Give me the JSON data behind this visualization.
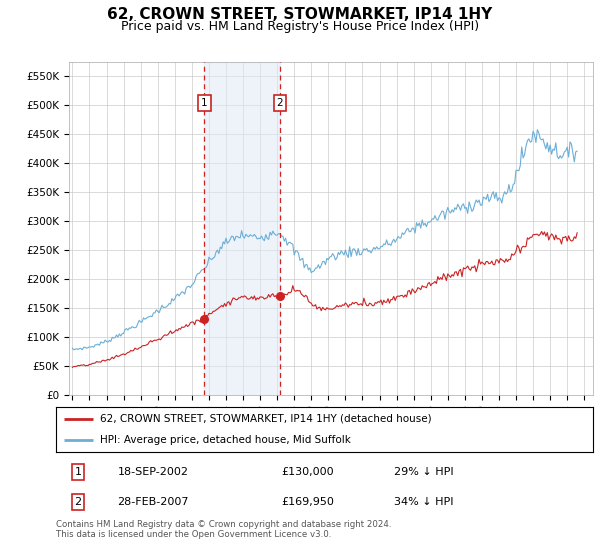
{
  "title": "62, CROWN STREET, STOWMARKET, IP14 1HY",
  "subtitle": "Price paid vs. HM Land Registry's House Price Index (HPI)",
  "title_fontsize": 11,
  "subtitle_fontsize": 9,
  "ylim": [
    0,
    575000
  ],
  "yticks": [
    0,
    50000,
    100000,
    150000,
    200000,
    250000,
    300000,
    350000,
    400000,
    450000,
    500000,
    550000
  ],
  "ytick_labels": [
    "£0",
    "£50K",
    "£100K",
    "£150K",
    "£200K",
    "£250K",
    "£300K",
    "£350K",
    "£400K",
    "£450K",
    "£500K",
    "£550K"
  ],
  "hpi_color": "#6baed6",
  "price_color": "#cc2222",
  "vline_color": "#cc2222",
  "shade_color": "#dce9f5",
  "shade_alpha": 0.5,
  "marker1_x": 2002.72,
  "marker2_x": 2007.17,
  "marker1_price": 130000,
  "marker2_price": 169950,
  "transaction1": "18-SEP-2002",
  "transaction2": "28-FEB-2007",
  "pct1": "29% ↓ HPI",
  "pct2": "34% ↓ HPI",
  "legend_line1": "62, CROWN STREET, STOWMARKET, IP14 1HY (detached house)",
  "legend_line2": "HPI: Average price, detached house, Mid Suffolk",
  "footnote": "Contains HM Land Registry data © Crown copyright and database right 2024.\nThis data is licensed under the Open Government Licence v3.0.",
  "bg_color": "#ffffff",
  "grid_color": "#cccccc",
  "xlim_left": 1994.8,
  "xlim_right": 2025.5
}
